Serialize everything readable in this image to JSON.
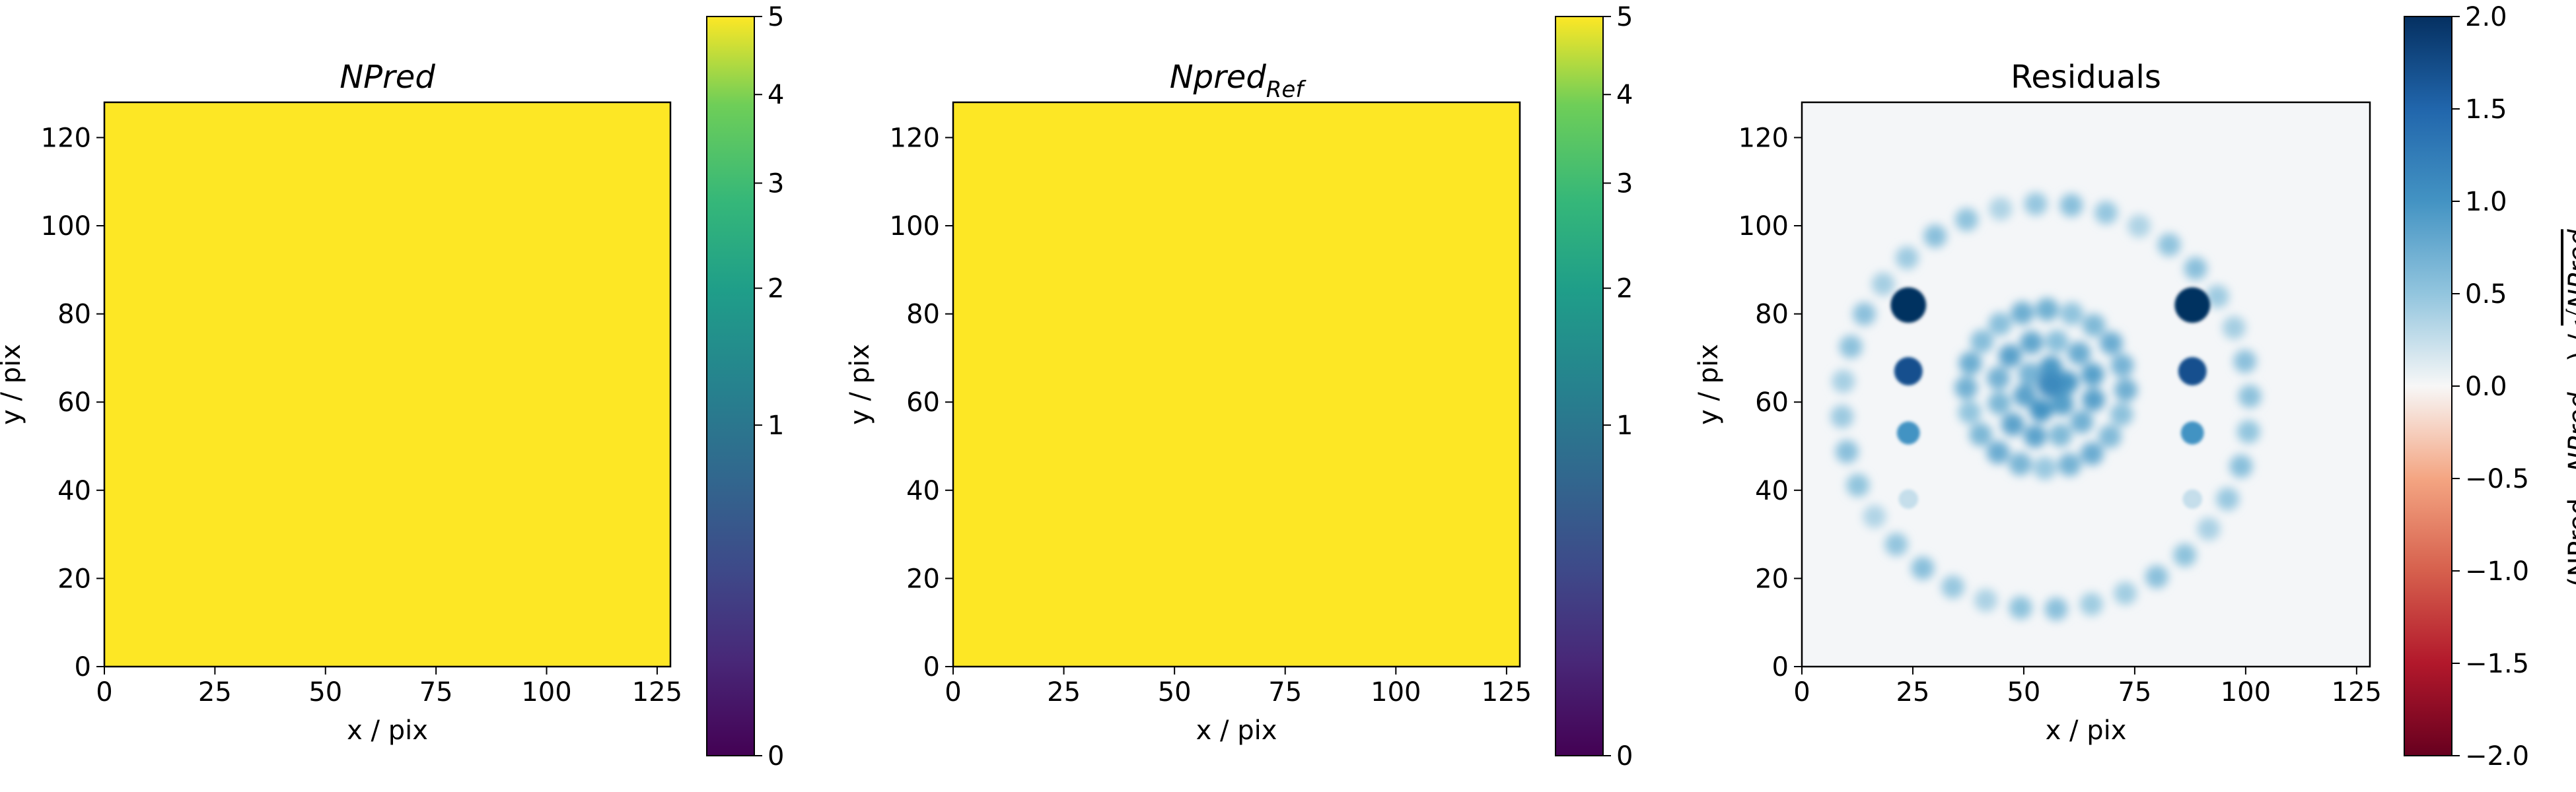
{
  "chart_data": [
    {
      "type": "heatmap",
      "title_main": "NPred",
      "title_sub": "",
      "title_italic": true,
      "xlabel": "x / pix",
      "ylabel": "y / pix",
      "xlim": [
        0,
        128
      ],
      "ylim": [
        0,
        128
      ],
      "xticks": [
        "0",
        "25",
        "50",
        "75",
        "100",
        "125"
      ],
      "yticks": [
        "0",
        "20",
        "40",
        "60",
        "80",
        "100",
        "120"
      ],
      "fill_value": 5,
      "colormap": "viridis",
      "fill_color": "#fde725",
      "colorbar": {
        "scale": "sqrt",
        "range": [
          0,
          5
        ],
        "ticks": [
          "0",
          "1",
          "2",
          "3",
          "4",
          "5"
        ],
        "label": ""
      }
    },
    {
      "type": "heatmap",
      "title_main": "Npred",
      "title_sub": "Ref",
      "title_italic": true,
      "xlabel": "x / pix",
      "ylabel": "y / pix",
      "xlim": [
        0,
        128
      ],
      "ylim": [
        0,
        128
      ],
      "xticks": [
        "0",
        "25",
        "50",
        "75",
        "100",
        "125"
      ],
      "yticks": [
        "0",
        "20",
        "40",
        "60",
        "80",
        "100",
        "120"
      ],
      "fill_value": 5,
      "colormap": "viridis",
      "fill_color": "#fde725",
      "colorbar": {
        "scale": "sqrt",
        "range": [
          0,
          5
        ],
        "ticks": [
          "0",
          "1",
          "2",
          "3",
          "4",
          "5"
        ],
        "label": ""
      }
    },
    {
      "type": "heatmap",
      "title_main": "Residuals",
      "title_sub": "",
      "title_italic": false,
      "xlabel": "x / pix",
      "ylabel": "y / pix",
      "xlim": [
        0,
        128
      ],
      "ylim": [
        0,
        128
      ],
      "xticks": [
        "0",
        "25",
        "50",
        "75",
        "100",
        "125"
      ],
      "yticks": [
        "0",
        "20",
        "40",
        "60",
        "80",
        "100",
        "120"
      ],
      "colormap": "RdBu",
      "background_color": "#f4f6f8",
      "colorbar": {
        "scale": "linear",
        "range": [
          -2,
          2
        ],
        "ticks": [
          "2.0",
          "1.5",
          "1.0",
          "0.5",
          "0.0",
          "−0.5",
          "−1.0",
          "−1.5",
          "−2.0"
        ],
        "label_parts": [
          "(NPred - ",
          "NPred",
          "Ref",
          ") / ",
          "NPred",
          "Ref"
        ]
      },
      "features": {
        "outer_ring": {
          "center": [
            55,
            59
          ],
          "radius": 46,
          "count": 36,
          "level": 0.45
        },
        "inner_ring_1": {
          "center": [
            55,
            63
          ],
          "radius": 18,
          "count": 20,
          "level": 0.6
        },
        "inner_ring_2": {
          "center": [
            55,
            63
          ],
          "radius": 11,
          "count": 12,
          "level": 0.7
        },
        "inner_ring_3": {
          "center": [
            55,
            63
          ],
          "radius": 5,
          "count": 6,
          "level": 0.8
        },
        "center_spot": {
          "center": [
            56,
            64
          ],
          "level": 1.1
        },
        "point_sources": [
          {
            "x": 24,
            "y": 82,
            "level": 2.0
          },
          {
            "x": 24,
            "y": 67,
            "level": 1.7
          },
          {
            "x": 24,
            "y": 53,
            "level": 1.0
          },
          {
            "x": 24,
            "y": 38,
            "level": 0.25
          },
          {
            "x": 88,
            "y": 82,
            "level": 2.0
          },
          {
            "x": 88,
            "y": 67,
            "level": 1.7
          },
          {
            "x": 88,
            "y": 53,
            "level": 1.0
          },
          {
            "x": 88,
            "y": 38,
            "level": 0.25
          }
        ]
      }
    }
  ]
}
